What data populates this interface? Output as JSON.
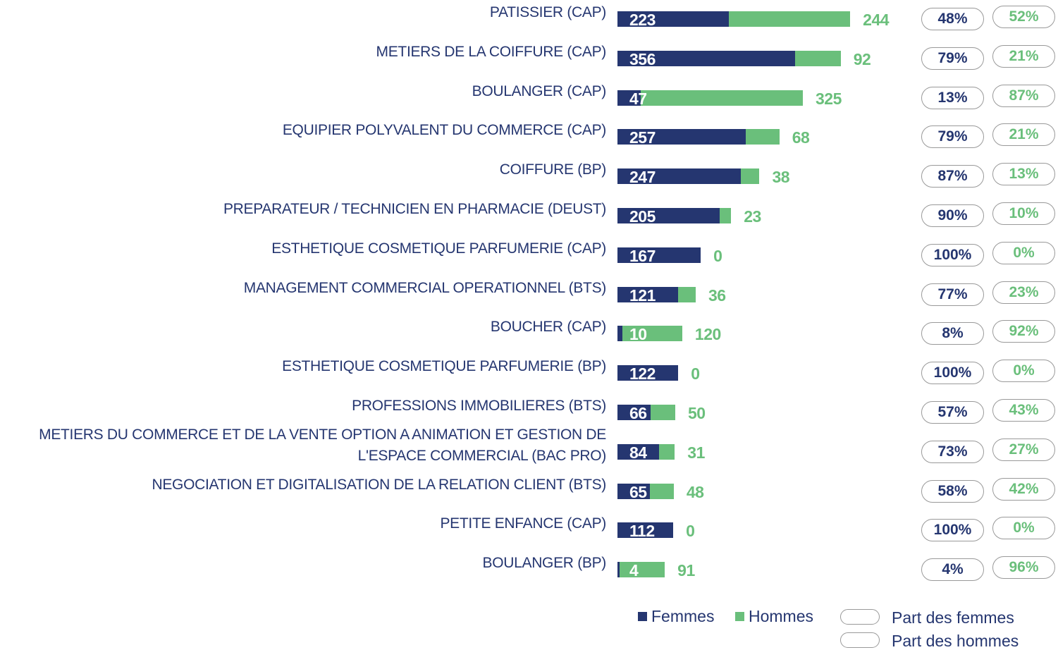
{
  "chart_data": {
    "type": "stacked-bar-horizontal",
    "categories": [
      "PATISSIER (CAP)",
      "METIERS DE LA COIFFURE (CAP)",
      "BOULANGER (CAP)",
      "EQUIPIER POLYVALENT DU COMMERCE (CAP)",
      "COIFFURE (BP)",
      "PREPARATEUR / TECHNICIEN EN PHARMACIE (DEUST)",
      "ESTHETIQUE COSMETIQUE PARFUMERIE (CAP)",
      "MANAGEMENT COMMERCIAL OPERATIONNEL (BTS)",
      "BOUCHER (CAP)",
      "ESTHETIQUE COSMETIQUE PARFUMERIE (BP)",
      "PROFESSIONS IMMOBILIERES (BTS)",
      "METIERS DU COMMERCE ET DE LA VENTE OPTION A ANIMATION ET GESTION DE L'ESPACE COMMERCIAL (BAC PRO)",
      "NEGOCIATION ET DIGITALISATION DE LA RELATION CLIENT (BTS)",
      "PETITE ENFANCE (CAP)",
      "BOULANGER (BP)"
    ],
    "series": [
      {
        "name": "Femmes",
        "color": "#253670",
        "values": [
          223,
          356,
          47,
          257,
          247,
          205,
          167,
          121,
          10,
          122,
          66,
          84,
          65,
          112,
          4
        ]
      },
      {
        "name": "Hommes",
        "color": "#6abf7b",
        "values": [
          244,
          92,
          325,
          68,
          38,
          23,
          0,
          36,
          120,
          0,
          50,
          31,
          48,
          0,
          91
        ]
      }
    ],
    "shares": [
      {
        "name": "Part des femmes",
        "color": "#253670",
        "values": [
          48,
          79,
          13,
          79,
          87,
          90,
          100,
          77,
          8,
          100,
          57,
          73,
          58,
          100,
          4
        ],
        "value_labels": [
          "48%",
          "79%",
          "13%",
          "79%",
          "87%",
          "90%",
          "100%",
          "77%",
          "8%",
          "100%",
          "57%",
          "73%",
          "58%",
          "100%",
          "4%"
        ]
      },
      {
        "name": "Part des hommes",
        "color": "#6abf7b",
        "values": [
          52,
          21,
          87,
          21,
          13,
          10,
          0,
          23,
          92,
          0,
          43,
          27,
          42,
          0,
          96
        ],
        "value_labels": [
          "52%",
          "21%",
          "87%",
          "21%",
          "13%",
          "10%",
          "0%",
          "23%",
          "92%",
          "0%",
          "43%",
          "27%",
          "42%",
          "0%",
          "96%"
        ]
      }
    ]
  }
}
